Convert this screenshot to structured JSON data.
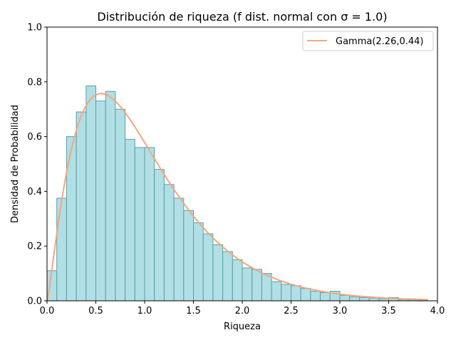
{
  "chart_data": {
    "type": "bar",
    "title": "Distribución de riqueza (f dist. normal con σ = 1.0)",
    "xlabel": "Riqueza",
    "ylabel": "Densidad de Probabilidad",
    "xlim": [
      0,
      4.0
    ],
    "ylim": [
      0,
      1.0
    ],
    "x_ticks": [
      "0.0",
      "0.5",
      "1.0",
      "1.5",
      "2.0",
      "2.5",
      "3.0",
      "3.5",
      "4.0"
    ],
    "y_ticks": [
      "0.0",
      "0.2",
      "0.4",
      "0.6",
      "0.8",
      "1.0"
    ],
    "bin_width": 0.1,
    "bins": [
      {
        "x0": 0.0,
        "v": 0.11
      },
      {
        "x0": 0.1,
        "v": 0.375
      },
      {
        "x0": 0.2,
        "v": 0.6
      },
      {
        "x0": 0.3,
        "v": 0.69
      },
      {
        "x0": 0.4,
        "v": 0.785
      },
      {
        "x0": 0.5,
        "v": 0.73
      },
      {
        "x0": 0.6,
        "v": 0.765
      },
      {
        "x0": 0.7,
        "v": 0.7
      },
      {
        "x0": 0.8,
        "v": 0.59
      },
      {
        "x0": 0.9,
        "v": 0.56
      },
      {
        "x0": 1.0,
        "v": 0.56
      },
      {
        "x0": 1.1,
        "v": 0.48
      },
      {
        "x0": 1.2,
        "v": 0.425
      },
      {
        "x0": 1.3,
        "v": 0.375
      },
      {
        "x0": 1.4,
        "v": 0.33
      },
      {
        "x0": 1.5,
        "v": 0.285
      },
      {
        "x0": 1.6,
        "v": 0.245
      },
      {
        "x0": 1.7,
        "v": 0.205
      },
      {
        "x0": 1.8,
        "v": 0.18
      },
      {
        "x0": 1.9,
        "v": 0.15
      },
      {
        "x0": 2.0,
        "v": 0.12
      },
      {
        "x0": 2.1,
        "v": 0.115
      },
      {
        "x0": 2.2,
        "v": 0.1
      },
      {
        "x0": 2.3,
        "v": 0.07
      },
      {
        "x0": 2.4,
        "v": 0.06
      },
      {
        "x0": 2.5,
        "v": 0.055
      },
      {
        "x0": 2.6,
        "v": 0.045
      },
      {
        "x0": 2.7,
        "v": 0.035
      },
      {
        "x0": 2.8,
        "v": 0.03
      },
      {
        "x0": 2.9,
        "v": 0.035
      },
      {
        "x0": 3.0,
        "v": 0.02
      },
      {
        "x0": 3.1,
        "v": 0.015
      },
      {
        "x0": 3.2,
        "v": 0.012
      },
      {
        "x0": 3.3,
        "v": 0.01
      },
      {
        "x0": 3.4,
        "v": 0.008
      },
      {
        "x0": 3.5,
        "v": 0.012
      },
      {
        "x0": 3.6,
        "v": 0.005
      },
      {
        "x0": 3.7,
        "v": 0.004
      },
      {
        "x0": 3.8,
        "v": 0.003
      }
    ],
    "series": [
      {
        "name": "Gamma(2.26,0.44)",
        "type": "line",
        "distribution": "gamma",
        "shape": 2.26,
        "scale": 0.44,
        "x_range": [
          0.0,
          3.9
        ]
      }
    ],
    "grid": false,
    "legend_position": "top-right",
    "colors": {
      "bar_fill": "#b0dfe5",
      "bar_edge": "#5f9ea0",
      "line": "#f4a582",
      "axis": "#000000"
    }
  }
}
